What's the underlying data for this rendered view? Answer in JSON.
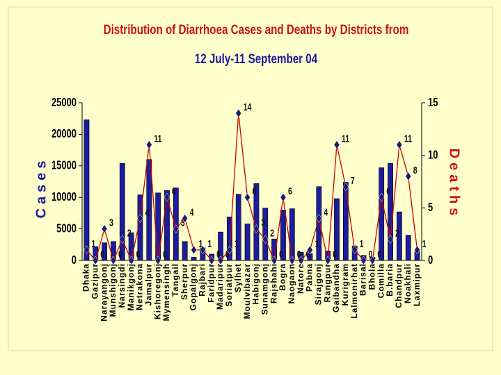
{
  "chart_data": {
    "type": "bar_line",
    "title": "Distribution of Diarrhoea Cases and Deaths by Districts from",
    "subtitle": "12 July-11 September 04",
    "y_label": "Cases",
    "y2_label": "Deaths",
    "categories": [
      "Dhaka",
      "Gazipur",
      "Narayangonj",
      "Munshigonj",
      "Narsingdi",
      "Manikgonj",
      "Netrakona",
      "Jamalpur",
      "Kishoregonj",
      "Mymensingh",
      "Tangail",
      "Sherpur",
      "Gopalgonj",
      "Rajbari",
      "Faridpur",
      "Madaripur",
      "Soriatpur",
      "Sylhet",
      "Moulvibazar",
      "Habigonj",
      "Sunamgonj",
      "Rajshahi",
      "Bogra",
      "Naogaon",
      "Natore",
      "Pabna",
      "Sirajgonj",
      "Rangpur",
      "Gaibandha",
      "Kurigram",
      "Lalmonirhat",
      "Barisal",
      "Bhola",
      "Comilla",
      "B.baria",
      "Chandpur",
      "Noakhali",
      "Laxmipur"
    ],
    "series": [
      {
        "name": "Cases",
        "type": "bar",
        "color": "#1c1c9e",
        "axis": "y",
        "values": [
          22300,
          2200,
          2800,
          3000,
          15400,
          4400,
          10400,
          16000,
          10700,
          11100,
          11500,
          3000,
          500,
          2000,
          1000,
          4500,
          6900,
          10500,
          5800,
          12200,
          8300,
          3400,
          8000,
          8200,
          1300,
          1100,
          11700,
          1500,
          9800,
          12400,
          2300,
          800,
          500,
          14700,
          15400,
          7700,
          4000,
          1400
        ]
      },
      {
        "name": "Deaths",
        "type": "line",
        "color": "#cc0000",
        "marker_color": "#1c1c6e",
        "axis": "y2",
        "values": [
          1,
          0,
          3,
          0,
          2,
          0,
          4,
          11,
          0,
          6,
          3,
          4,
          1,
          1,
          0,
          0,
          1,
          14,
          6,
          3,
          2,
          0,
          6,
          0,
          0,
          1,
          4,
          0,
          11,
          7,
          1,
          0,
          0,
          6,
          2,
          11,
          8,
          1
        ]
      }
    ],
    "ylim": [
      0,
      25000
    ],
    "yticks": [
      0,
      5000,
      10000,
      15000,
      20000,
      25000
    ],
    "y2lim": [
      0,
      15
    ],
    "y2ticks": [
      0,
      5,
      10,
      15
    ]
  }
}
